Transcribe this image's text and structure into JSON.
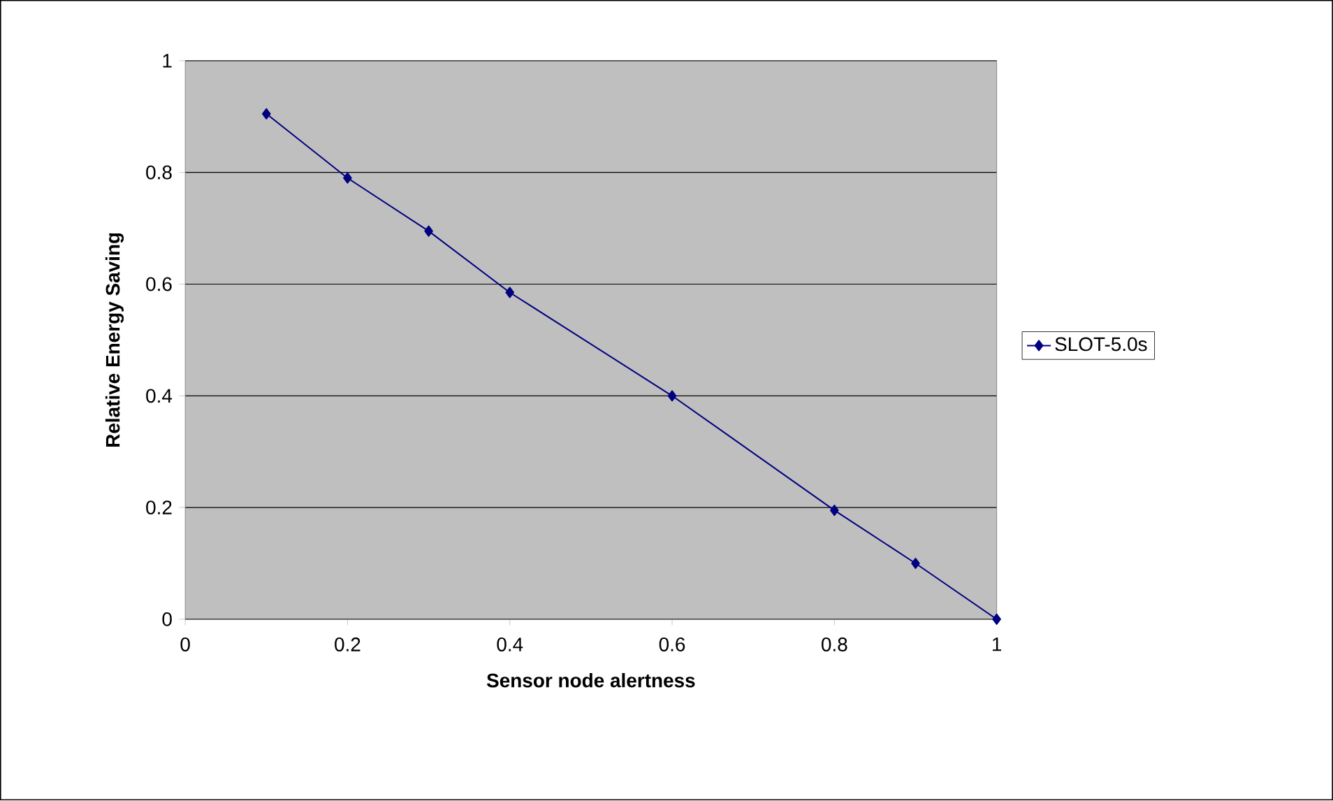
{
  "chart_data": {
    "type": "line",
    "xlabel": "Sensor node alertness",
    "ylabel": "Relative Energy Saving",
    "x": [
      0.1,
      0.2,
      0.3,
      0.4,
      0.6,
      0.8,
      0.9,
      1.0
    ],
    "series": [
      {
        "name": "SLOT-5.0s",
        "color": "#000080",
        "values": [
          0.905,
          0.79,
          0.695,
          0.585,
          0.4,
          0.195,
          0.1,
          0.0
        ]
      }
    ],
    "xlim": [
      0,
      1
    ],
    "ylim": [
      0,
      1
    ],
    "xticks": [
      0,
      0.2,
      0.4,
      0.6,
      0.8,
      1
    ],
    "yticks": [
      0,
      0.2,
      0.4,
      0.6,
      0.8,
      1
    ],
    "grid": "y",
    "legend": "right",
    "marker": "diamond",
    "line_style": "solid"
  }
}
